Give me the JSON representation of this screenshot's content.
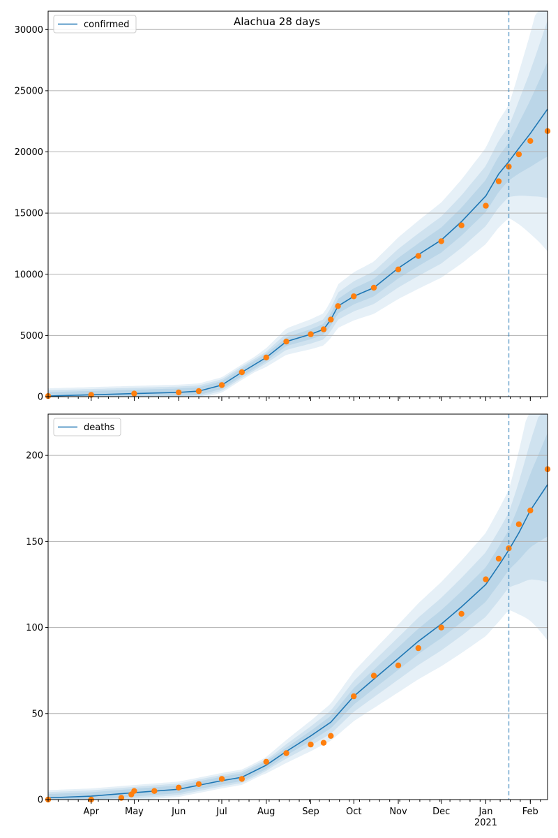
{
  "figure": {
    "title": "Alachua 28 days",
    "colors": {
      "model_line": "#1f77b4",
      "band": "#1f77b4",
      "observed": "#ff7f0e",
      "forecast_marker": "#1f77b4",
      "grid": "#b0b0b0",
      "axis": "#000000"
    }
  },
  "chart_data": [
    {
      "type": "line",
      "title": "Alachua 28 days",
      "xlabel": "",
      "ylabel": "",
      "x_range": [
        "2020-03-02",
        "2021-02-13"
      ],
      "ylim": [
        0,
        31500
      ],
      "yticks": [
        0,
        5000,
        10000,
        15000,
        20000,
        25000,
        30000
      ],
      "x_tick_labels": [],
      "forecast_start": "2021-01-17",
      "grid": "horizontal",
      "legend": {
        "position": "top-left",
        "entries": [
          "confirmed"
        ]
      },
      "series": [
        {
          "name": "confirmed",
          "style": "line",
          "x": [
            "2020-03-02",
            "2020-04-01",
            "2020-05-01",
            "2020-06-01",
            "2020-06-15",
            "2020-07-01",
            "2020-07-15",
            "2020-08-01",
            "2020-08-15",
            "2020-09-01",
            "2020-09-10",
            "2020-09-15",
            "2020-09-20",
            "2020-10-01",
            "2020-10-15",
            "2020-11-01",
            "2020-11-15",
            "2020-12-01",
            "2020-12-15",
            "2021-01-01",
            "2021-01-10",
            "2021-01-17",
            "2021-01-24",
            "2021-02-01",
            "2021-02-13"
          ],
          "values": [
            50,
            150,
            250,
            350,
            450,
            950,
            2000,
            3200,
            4500,
            5100,
            5500,
            6300,
            7400,
            8200,
            8900,
            10500,
            11600,
            12800,
            14300,
            16400,
            18200,
            19200,
            20300,
            21500,
            23500
          ]
        },
        {
          "name": "",
          "style": "scatter",
          "x": [
            "2020-03-02",
            "2020-04-01",
            "2020-05-01",
            "2020-06-01",
            "2020-06-15",
            "2020-07-01",
            "2020-07-15",
            "2020-08-01",
            "2020-08-15",
            "2020-09-01",
            "2020-09-10",
            "2020-09-15",
            "2020-09-20",
            "2020-10-01",
            "2020-10-15",
            "2020-11-01",
            "2020-11-15",
            "2020-12-01",
            "2020-12-15",
            "2021-01-01",
            "2021-01-10",
            "2021-01-17",
            "2021-01-24",
            "2021-02-01",
            "2021-02-13"
          ],
          "values": [
            50,
            150,
            250,
            350,
            450,
            950,
            2000,
            3200,
            4500,
            5100,
            5500,
            6300,
            7400,
            8200,
            8900,
            10400,
            11500,
            12700,
            14000,
            15600,
            17600,
            18800,
            19800,
            20900,
            21700
          ]
        }
      ]
    },
    {
      "type": "line",
      "title": "",
      "xlabel": "",
      "ylabel": "",
      "x_range": [
        "2020-03-02",
        "2021-02-13"
      ],
      "ylim": [
        0,
        224
      ],
      "yticks": [
        0,
        50,
        100,
        150,
        200
      ],
      "x_tick_labels": [
        "Apr",
        "May",
        "Jun",
        "Jul",
        "Aug",
        "Sep",
        "Oct",
        "Nov",
        "Dec",
        "Jan\n2021",
        "Feb"
      ],
      "forecast_start": "2021-01-17",
      "grid": "horizontal",
      "legend": {
        "position": "top-left",
        "entries": [
          "deaths"
        ]
      },
      "series": [
        {
          "name": "deaths",
          "style": "line",
          "x": [
            "2020-03-02",
            "2020-04-01",
            "2020-05-01",
            "2020-06-01",
            "2020-07-01",
            "2020-07-15",
            "2020-08-01",
            "2020-08-15",
            "2020-09-01",
            "2020-09-15",
            "2020-10-01",
            "2020-10-15",
            "2020-11-01",
            "2020-11-15",
            "2020-12-01",
            "2020-12-15",
            "2021-01-01",
            "2021-01-10",
            "2021-01-17",
            "2021-01-24",
            "2021-02-01",
            "2021-02-13"
          ],
          "values": [
            1,
            2,
            4,
            6,
            11,
            13,
            20,
            28,
            37,
            45,
            60,
            70,
            82,
            92,
            102,
            112,
            125,
            136,
            145,
            155,
            168,
            183
          ]
        },
        {
          "name": "",
          "style": "scatter",
          "x": [
            "2020-03-02",
            "2020-04-01",
            "2020-04-22",
            "2020-04-29",
            "2020-05-01",
            "2020-05-15",
            "2020-06-01",
            "2020-06-15",
            "2020-07-01",
            "2020-07-15",
            "2020-08-01",
            "2020-08-15",
            "2020-09-01",
            "2020-09-10",
            "2020-09-15",
            "2020-10-01",
            "2020-10-15",
            "2020-11-01",
            "2020-11-15",
            "2020-12-01",
            "2020-12-15",
            "2021-01-01",
            "2021-01-10",
            "2021-01-17",
            "2021-01-24",
            "2021-02-01",
            "2021-02-13"
          ],
          "values": [
            0,
            0,
            1,
            3,
            5,
            5,
            7,
            9,
            12,
            12,
            22,
            27,
            32,
            33,
            37,
            60,
            72,
            78,
            88,
            100,
            108,
            128,
            140,
            146,
            160,
            168,
            192
          ]
        }
      ]
    }
  ]
}
